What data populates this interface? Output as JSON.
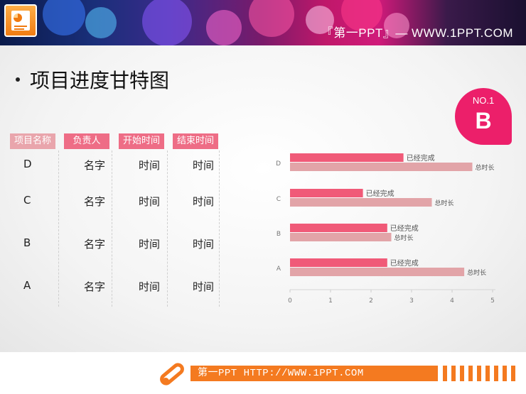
{
  "header": {
    "site_title": "『第一PPT』— WWW.1PPT.COM",
    "logo_icon": "powerpoint-icon"
  },
  "slide": {
    "title": "项目进度甘特图"
  },
  "badge": {
    "label": "NO.1",
    "letter": "B",
    "color": "#ec1f6a"
  },
  "table": {
    "headers": [
      "项目名称",
      "负责人",
      "开始时间",
      "结束时间"
    ],
    "rows": [
      {
        "name": "D",
        "owner": "名字",
        "start": "时间",
        "end": "时间"
      },
      {
        "name": "C",
        "owner": "名字",
        "start": "时间",
        "end": "时间"
      },
      {
        "name": "B",
        "owner": "名字",
        "start": "时间",
        "end": "时间"
      },
      {
        "name": "A",
        "owner": "名字",
        "start": "时间",
        "end": "时间"
      }
    ]
  },
  "chart_data": {
    "type": "bar",
    "orientation": "horizontal",
    "categories": [
      "A",
      "B",
      "C",
      "D"
    ],
    "series": [
      {
        "name": "已经完成",
        "values": [
          2.4,
          2.4,
          1.8,
          2.8
        ],
        "color": "#f05a78"
      },
      {
        "name": "总时长",
        "values": [
          4.3,
          2.5,
          3.5,
          4.5
        ],
        "color": "#e2a4a8"
      }
    ],
    "data_labels": [
      "已经完成",
      "总时长"
    ],
    "xlim": [
      0,
      5
    ],
    "xticks": [
      "0",
      "1",
      "2",
      "3",
      "4",
      "5"
    ],
    "grid": false,
    "legend": "none"
  },
  "footer": {
    "text": "第一PPT HTTP://WWW.1PPT.COM",
    "icon": "paperclip-icon",
    "accent": "#f47a20"
  }
}
